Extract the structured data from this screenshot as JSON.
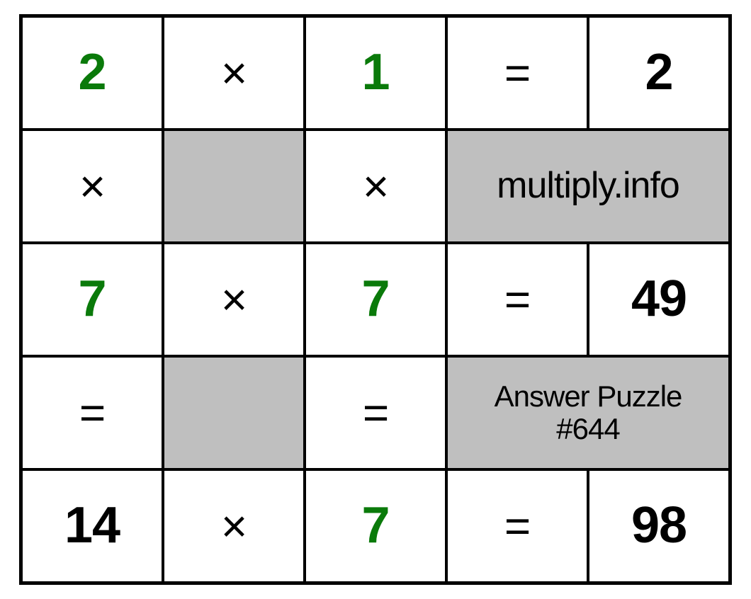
{
  "puzzle": {
    "type": "multiplication-grid",
    "colors": {
      "cell_border": "#000000",
      "cell_bg": "#ffffff",
      "grey_bg": "#bfbfbf",
      "text_black": "#000000",
      "text_green": "#0a7a0a"
    },
    "typography": {
      "number_fontsize": 72,
      "number_fontweight": 700,
      "operator_fontsize": 64,
      "label_fontsize": 52,
      "answer_fontsize": 42
    },
    "cells": {
      "r0c0": "2",
      "r0c1": "×",
      "r0c2": "1",
      "r0c3": "=",
      "r0c4": "2",
      "r1c0": "×",
      "r1c1": "",
      "r1c2": "×",
      "r1c3_4": "multiply.info",
      "r2c0": "7",
      "r2c1": "×",
      "r2c2": "7",
      "r2c3": "=",
      "r2c4": "49",
      "r3c0": "=",
      "r3c1": "",
      "r3c2": "=",
      "r3c3_4": "Answer Puzzle\n#644",
      "r4c0": "14",
      "r4c1": "×",
      "r4c2": "7",
      "r4c3": "=",
      "r4c4": "98"
    }
  }
}
